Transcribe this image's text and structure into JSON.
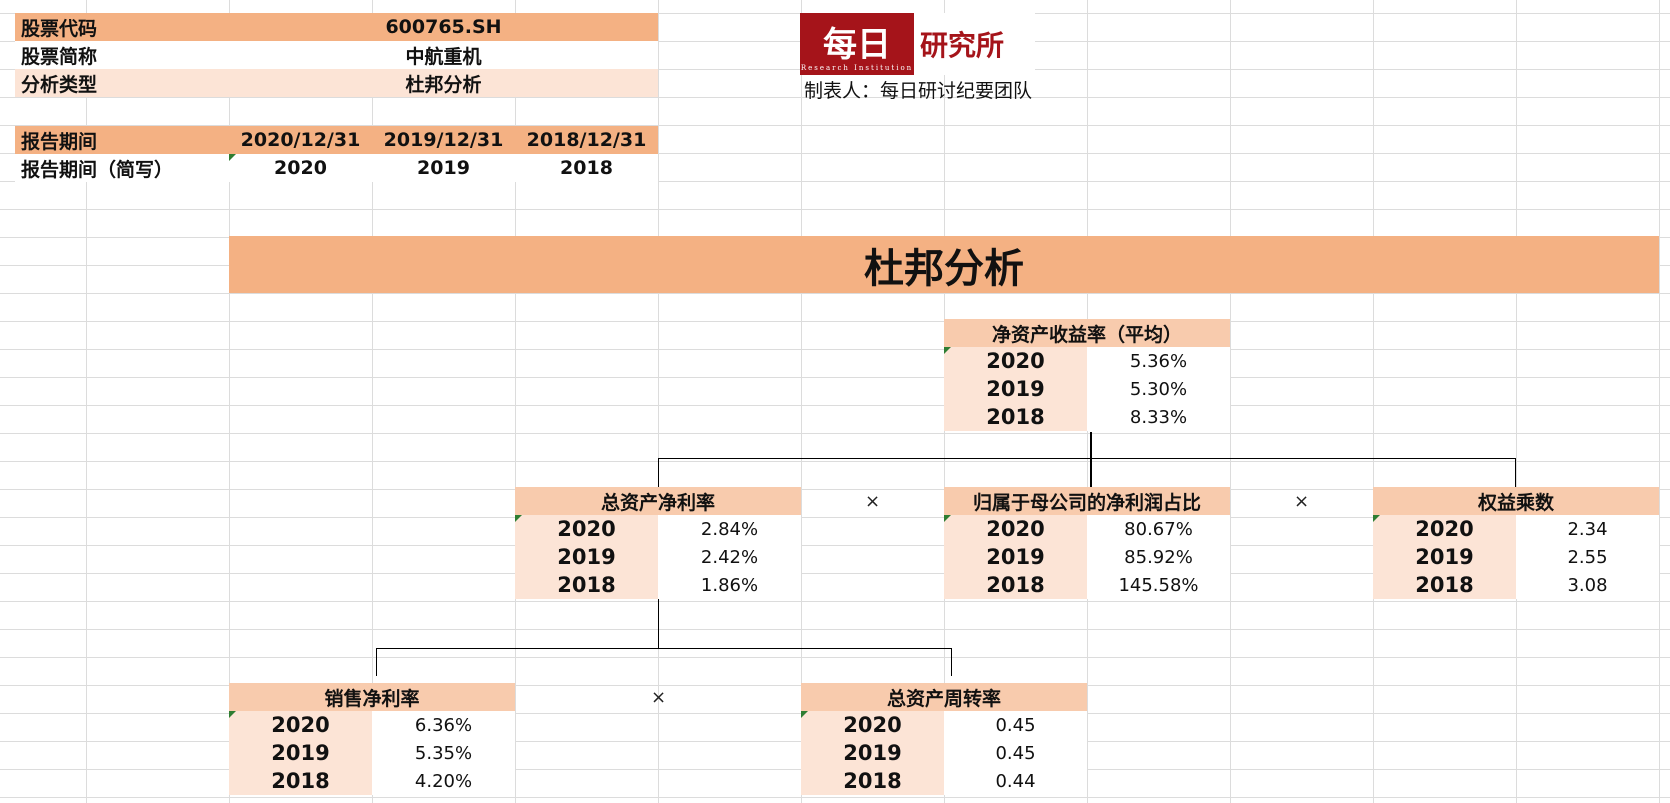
{
  "info": {
    "stock_code_label": "股票代码",
    "stock_code": "600765.SH",
    "stock_name_label": "股票简称",
    "stock_name": "中航重机",
    "analysis_type_label": "分析类型",
    "analysis_type": "杜邦分析",
    "period_label": "报告期间",
    "period_short_label": "报告期间（简写）",
    "periods": [
      "2020/12/31",
      "2019/12/31",
      "2018/12/31"
    ],
    "periods_short": [
      "2020",
      "2019",
      "2018"
    ]
  },
  "logo": {
    "main": "每日",
    "sub": "研究所",
    "english": "Research Institution"
  },
  "maker": "制表人：每日研讨纪要团队",
  "title": "杜邦分析",
  "operator": "×",
  "roe": {
    "title": "净资产收益率（平均）",
    "rows": [
      {
        "year": "2020",
        "value": "5.36%"
      },
      {
        "year": "2019",
        "value": "5.30%"
      },
      {
        "year": "2018",
        "value": "8.33%"
      }
    ]
  },
  "roa": {
    "title": "总资产净利率",
    "rows": [
      {
        "year": "2020",
        "value": "2.84%"
      },
      {
        "year": "2019",
        "value": "2.42%"
      },
      {
        "year": "2018",
        "value": "1.86%"
      }
    ]
  },
  "parent_ratio": {
    "title": "归属于母公司的净利润占比",
    "rows": [
      {
        "year": "2020",
        "value": "80.67%"
      },
      {
        "year": "2019",
        "value": "85.92%"
      },
      {
        "year": "2018",
        "value": "145.58%"
      }
    ]
  },
  "equity_multiplier": {
    "title": "权益乘数",
    "rows": [
      {
        "year": "2020",
        "value": "2.34"
      },
      {
        "year": "2019",
        "value": "2.55"
      },
      {
        "year": "2018",
        "value": "3.08"
      }
    ]
  },
  "net_margin": {
    "title": "销售净利率",
    "rows": [
      {
        "year": "2020",
        "value": "6.36%"
      },
      {
        "year": "2019",
        "value": "5.35%"
      },
      {
        "year": "2018",
        "value": "4.20%"
      }
    ]
  },
  "asset_turnover": {
    "title": "总资产周转率",
    "rows": [
      {
        "year": "2020",
        "value": "0.45"
      },
      {
        "year": "2019",
        "value": "0.45"
      },
      {
        "year": "2018",
        "value": "0.44"
      }
    ]
  }
}
